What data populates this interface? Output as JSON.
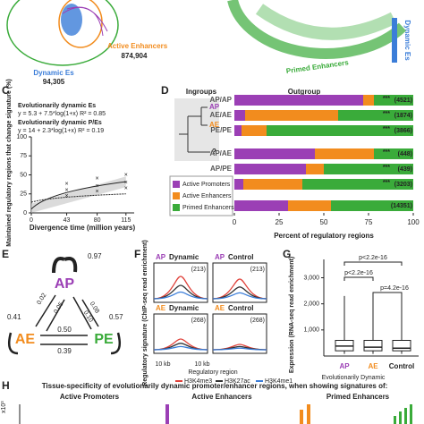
{
  "panel_ab": {
    "active_enhancers": "Active Enhancers",
    "active_count": "874,904",
    "dynamic": "Dynamic Es",
    "dynamic_count": "94,305",
    "primed": "Primed Enhancers",
    "dynamic_right": "Dynamic Es"
  },
  "panel_c": {
    "label": "C",
    "legend": [
      "Evolutionarily dynamic Es",
      "y = 5.3 + 7.5*log(1+x) R² = 0.85",
      "Evolutionarily dynamic P/Es",
      "y = 14 + 2.3*log(1+x) R² = 0.19"
    ],
    "ylabel": "Maintained regulatory regions that change signature (%)",
    "xlabel": "Divergence time (million years)",
    "xlim": [
      0,
      125
    ],
    "xticks": [
      0,
      43,
      80,
      115
    ],
    "ylim": [
      0,
      100
    ],
    "yticks": [
      0,
      25,
      50,
      75,
      100
    ]
  },
  "panel_d": {
    "label": "D",
    "ingroups": "Ingroups",
    "outgroup": "Outgroup",
    "tree": [
      "AP",
      "AE",
      "?"
    ],
    "categories": [
      "AP/AP",
      "AE/AE",
      "PE/PE",
      "AP/AE",
      "AP/PE",
      "AE/PE",
      "All"
    ],
    "counts": [
      "(4521)",
      "(1874)",
      "(3866)",
      "(448)",
      "(439)",
      "(3203)",
      "(14351)"
    ],
    "stars": [
      "***",
      "***",
      "***",
      "***",
      "***",
      "***",
      null
    ],
    "series": [
      {
        "name": "Active Promoters",
        "color": "#9b3fb5",
        "values": [
          72,
          6,
          4,
          45,
          40,
          5,
          30
        ]
      },
      {
        "name": "Active Enhancers",
        "color": "#f28c1e",
        "values": [
          6,
          52,
          14,
          33,
          10,
          33,
          24
        ]
      },
      {
        "name": "Primed Enhancers",
        "color": "#3aab3a",
        "values": [
          22,
          42,
          82,
          22,
          50,
          62,
          46
        ]
      }
    ],
    "xlim": [
      0,
      100
    ],
    "xticks": [
      0,
      25,
      50,
      75,
      100
    ],
    "xlabel": "Percent of regulatory regions"
  },
  "panel_e": {
    "label": "E",
    "nodes": [
      "AP",
      "AE",
      "PE"
    ],
    "edges": [
      "0.97",
      "0.41",
      "0.57",
      "0.02",
      "0.05",
      "0.10",
      "0.08",
      "0.50",
      "0.39"
    ]
  },
  "panel_f": {
    "label": "F",
    "ylabel": "Regulatory signature (ChIP-seq read enrichment)",
    "plots": [
      {
        "cls": "AP",
        "kind": "Dynamic",
        "n": "(213)"
      },
      {
        "cls": "AP",
        "kind": "Control",
        "n": "(213)"
      },
      {
        "cls": "AE",
        "kind": "Dynamic",
        "n": "(268)"
      },
      {
        "cls": "AE",
        "kind": "Control",
        "n": "(268)"
      }
    ],
    "xtick": "10 kb",
    "xlabel": "Regulatory region",
    "legend": [
      {
        "name": "H3K4me3",
        "color": "#e0413a"
      },
      {
        "name": "H3K27ac",
        "color": "#333333"
      },
      {
        "name": "H3K4me1",
        "color": "#3b7dd8"
      }
    ]
  },
  "panel_g": {
    "label": "G",
    "ylabel": "Expression (RNA-seq read enrichment)",
    "yticks": [
      {
        "value": 1000,
        "label": "1,000"
      },
      {
        "value": 2000,
        "label": "2,000"
      },
      {
        "value": 3000,
        "label": "3,000"
      }
    ],
    "ylim": [
      0,
      3600
    ],
    "pvalues": [
      "p<2.2e-16",
      "p<2.2e-16",
      "p=4.2e-16"
    ],
    "categories": [
      "AP",
      "AE",
      "Control"
    ],
    "group": "Evolutionarily Dynamic"
  },
  "panel_h": {
    "label": "H",
    "title": "Tissue-specificity of evolutionarily dynamic promoter/enhancer regions, when showing signatures of:",
    "subtitles": [
      "Active Promoters",
      "Active Enhancers",
      "Primed Enhancers"
    ],
    "unit": "x10³"
  }
}
